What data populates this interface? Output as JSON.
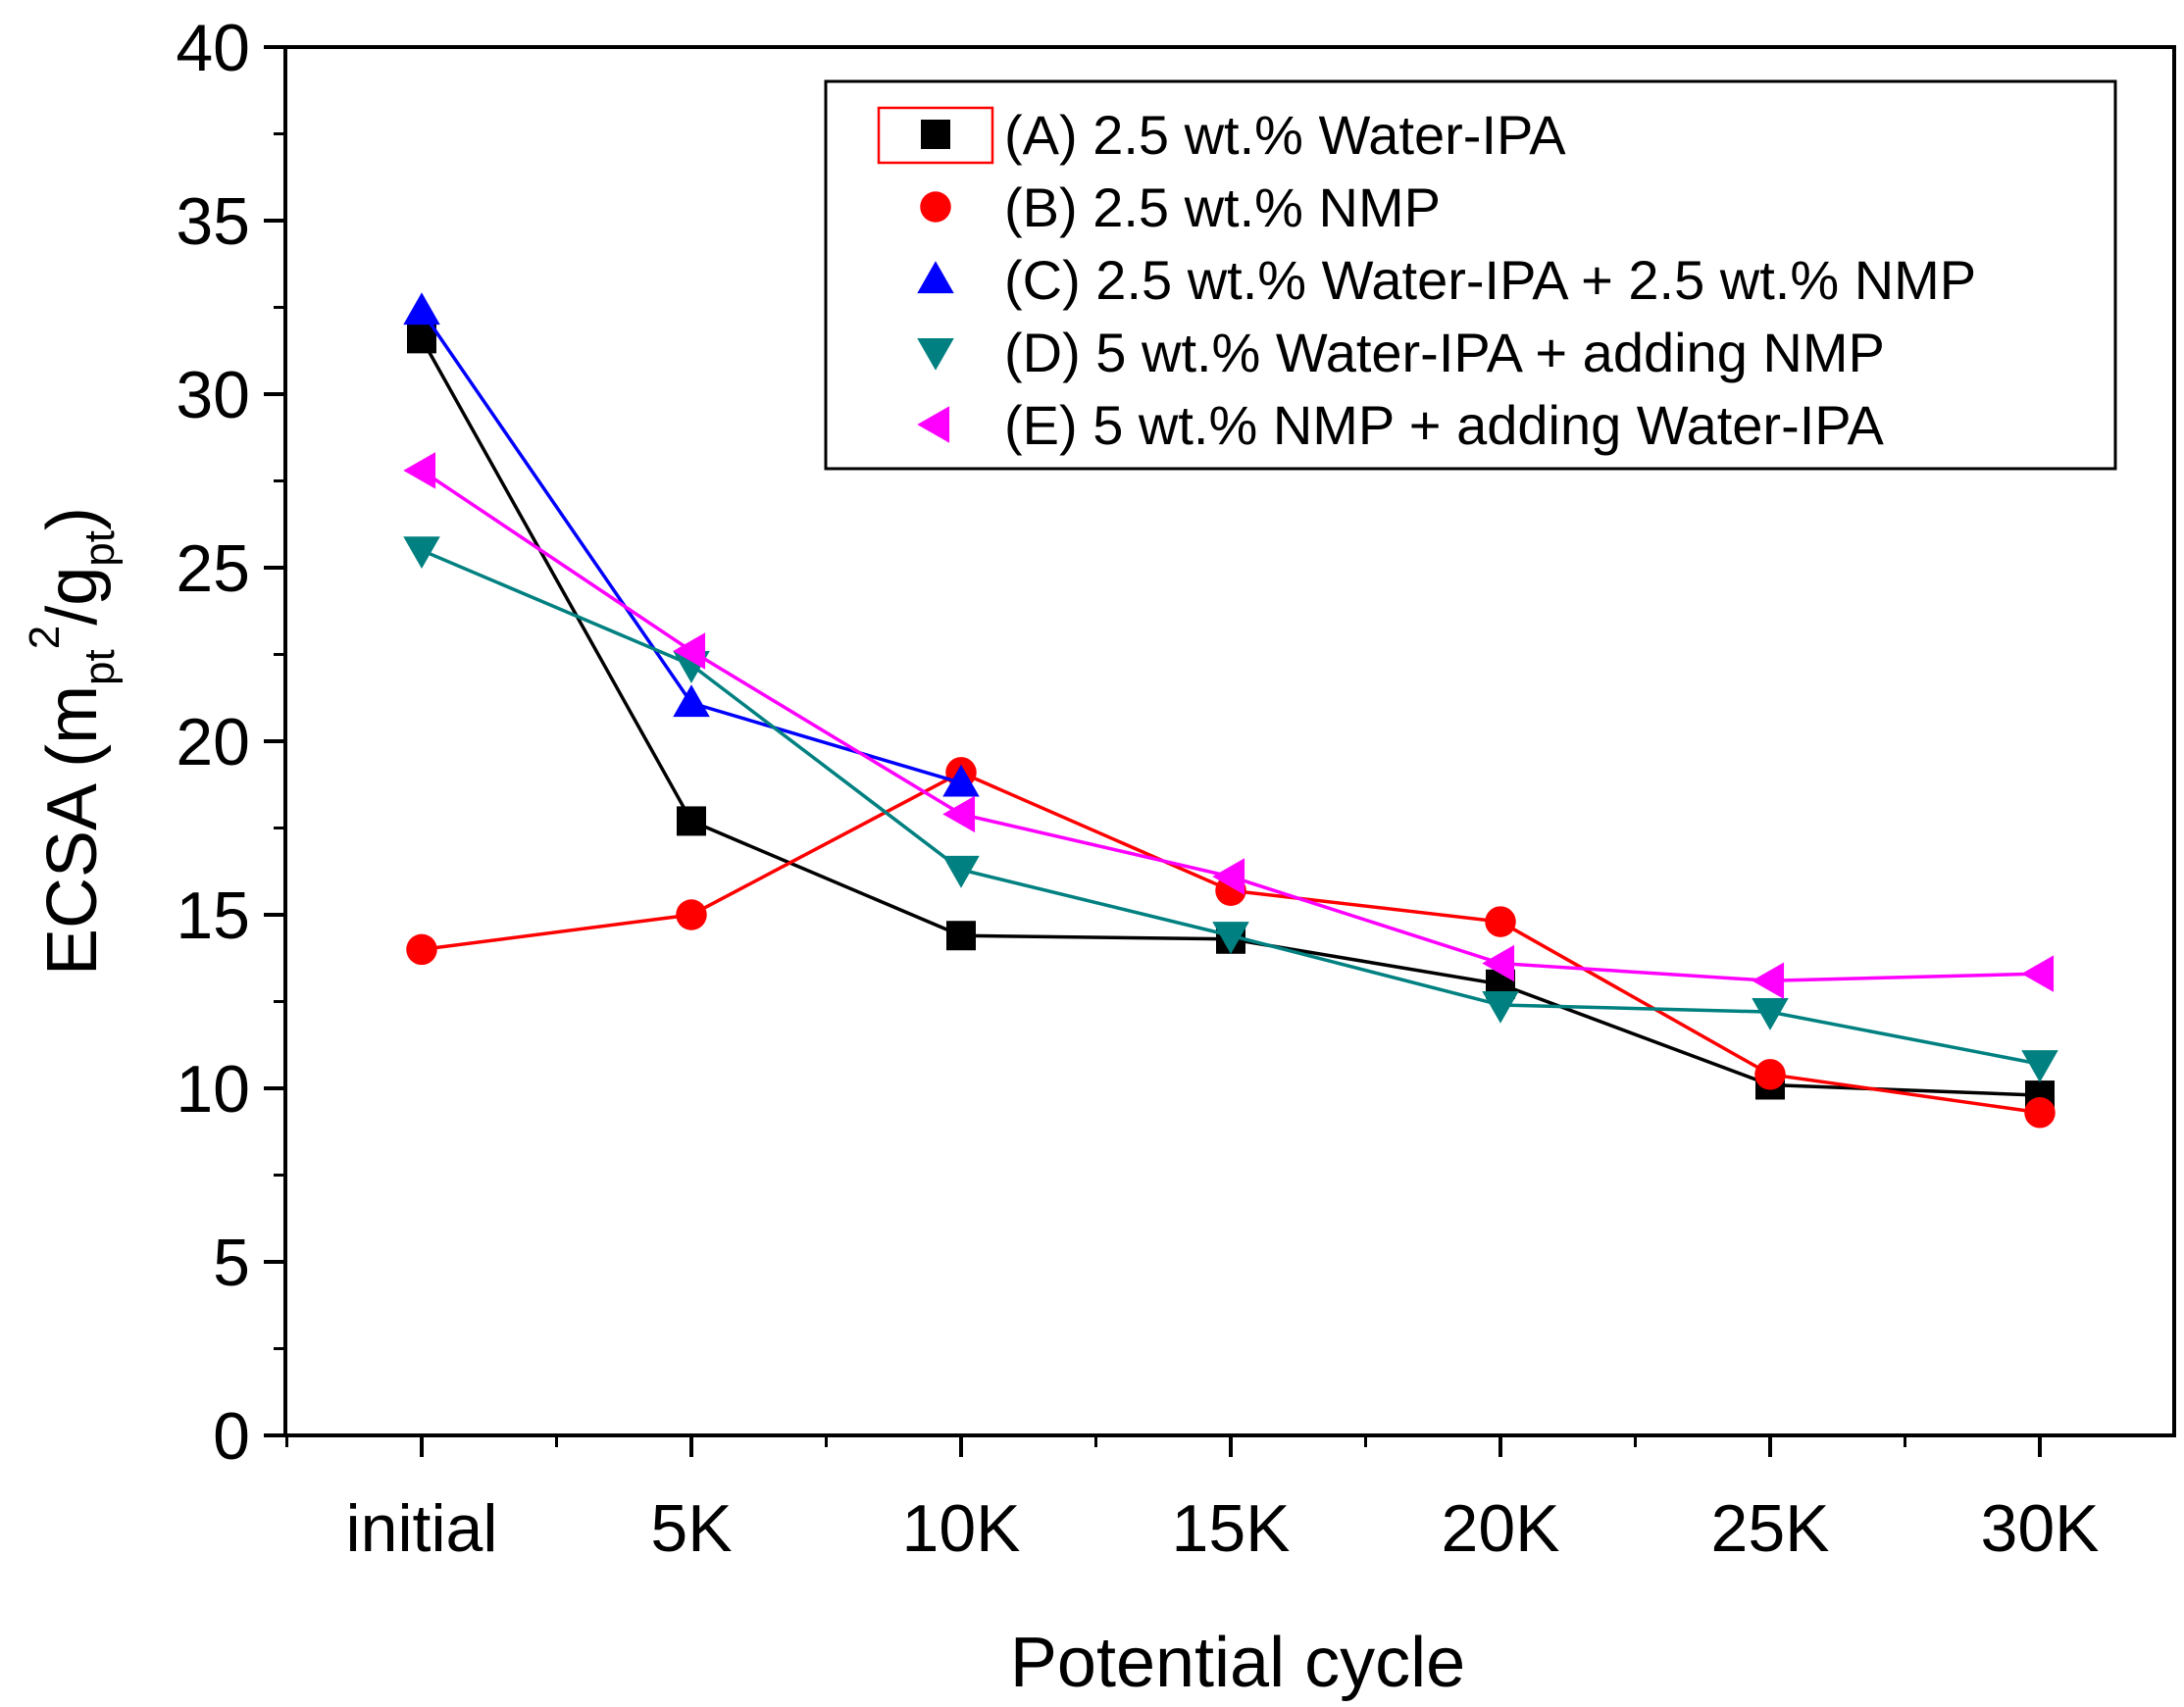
{
  "chart_data": {
    "type": "line",
    "title": "",
    "xlabel": "Potential cycle",
    "ylabel": {
      "main": "ECSA (m",
      "sub1": "pt",
      "sup": "2",
      "mid": "/g",
      "sub2": "pt",
      "close": ")"
    },
    "ylim": [
      0,
      40
    ],
    "yticks": [
      "0",
      "5",
      "10",
      "15",
      "20",
      "25",
      "30",
      "35",
      "40"
    ],
    "categories": [
      "initial",
      "5K",
      "10K",
      "15K",
      "20K",
      "25K",
      "30K"
    ],
    "legend_position": "top-right",
    "series": [
      {
        "key": "A",
        "name": "(A) 2.5 wt.% Water-IPA",
        "color": "#000000",
        "marker": "square",
        "values": [
          31.6,
          17.7,
          14.4,
          14.3,
          13.0,
          10.1,
          9.8
        ]
      },
      {
        "key": "B",
        "name": "(B) 2.5 wt.% NMP",
        "color": "#ff0000",
        "marker": "circle",
        "values": [
          14.0,
          15.0,
          19.1,
          15.7,
          14.8,
          10.4,
          9.3
        ]
      },
      {
        "key": "C",
        "name": "(C) 2.5 wt.% Water-IPA + 2.5 wt.% NMP",
        "color": "#0000ff",
        "marker": "triangle-up",
        "values": [
          32.4,
          21.1,
          18.8,
          null,
          null,
          null,
          null
        ]
      },
      {
        "key": "D",
        "name": "(D) 5 wt.% Water-IPA + adding NMP",
        "color": "#008080",
        "marker": "triangle-down",
        "values": [
          25.5,
          22.2,
          16.3,
          14.4,
          12.4,
          12.2,
          10.7
        ]
      },
      {
        "key": "E",
        "name": "(E) 5 wt.% NMP + adding Water-IPA",
        "color": "#ff00ff",
        "marker": "triangle-left",
        "values": [
          27.8,
          22.6,
          17.9,
          16.1,
          13.6,
          13.1,
          13.3
        ]
      }
    ]
  }
}
